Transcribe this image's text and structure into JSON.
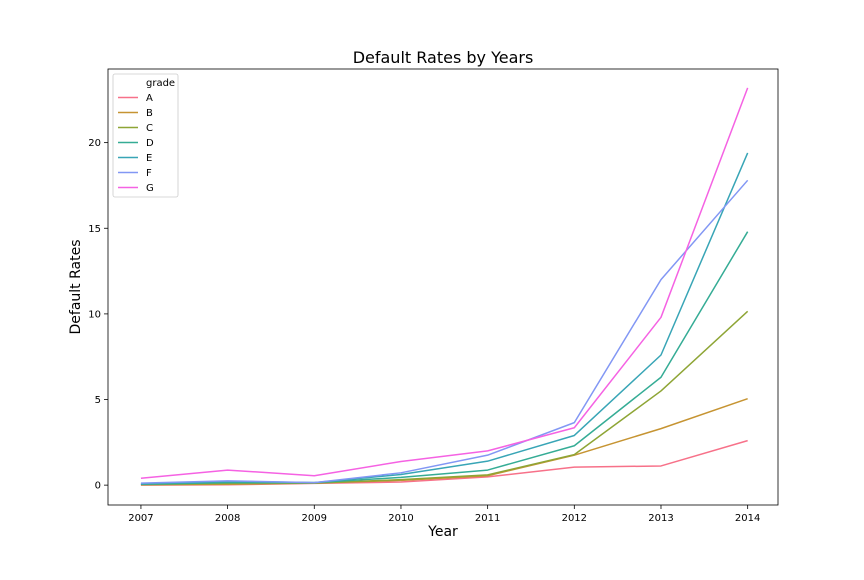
{
  "chart_data": {
    "type": "line",
    "title": "Default Rates by Years",
    "xlabel": "Year",
    "ylabel": "Default Rates",
    "x": [
      2007,
      2008,
      2009,
      2010,
      2011,
      2012,
      2013,
      2014
    ],
    "xlim": [
      2006.62,
      2014.35
    ],
    "ylim": [
      -1.16,
      24.3
    ],
    "yticks": [
      0,
      5,
      10,
      15,
      20
    ],
    "grid": false,
    "legend": {
      "title": "grade",
      "placement": "top-left"
    },
    "series": [
      {
        "name": "A",
        "color": "#f77189",
        "values": [
          0.0,
          0.02,
          0.1,
          0.18,
          0.48,
          1.05,
          1.12,
          2.6
        ]
      },
      {
        "name": "B",
        "color": "#c69432",
        "values": [
          0.02,
          0.05,
          0.12,
          0.28,
          0.55,
          1.75,
          3.3,
          5.05
        ]
      },
      {
        "name": "C",
        "color": "#8ea535",
        "values": [
          0.03,
          0.1,
          0.12,
          0.32,
          0.6,
          1.78,
          5.5,
          10.15
        ]
      },
      {
        "name": "D",
        "color": "#35ac95",
        "values": [
          0.05,
          0.15,
          0.15,
          0.45,
          0.88,
          2.3,
          6.3,
          14.8
        ]
      },
      {
        "name": "E",
        "color": "#38a5b6",
        "values": [
          0.08,
          0.22,
          0.15,
          0.62,
          1.4,
          2.9,
          7.6,
          19.4
        ]
      },
      {
        "name": "F",
        "color": "#8297f4",
        "values": [
          0.12,
          0.25,
          0.15,
          0.72,
          1.75,
          3.65,
          12.0,
          17.8
        ]
      },
      {
        "name": "G",
        "color": "#f562e3",
        "values": [
          0.4,
          0.88,
          0.55,
          1.38,
          2.0,
          3.35,
          9.8,
          23.2
        ]
      }
    ]
  }
}
